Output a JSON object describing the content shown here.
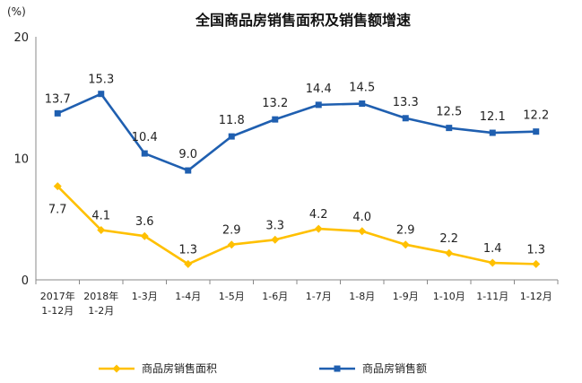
{
  "chart_data": {
    "type": "line",
    "title": "全国商品房销售面积及销售额增速",
    "unit": "(%)",
    "ylim": [
      0,
      20
    ],
    "yticks": [
      "0",
      "10",
      "20"
    ],
    "grid": false,
    "legend_position": "bottom",
    "categories": [
      [
        "2017年",
        "1-12月"
      ],
      [
        "2018年",
        "1-2月"
      ],
      [
        "1-3月"
      ],
      [
        "1-4月"
      ],
      [
        "1-5月"
      ],
      [
        "1-6月"
      ],
      [
        "1-7月"
      ],
      [
        "1-8月"
      ],
      [
        "1-9月"
      ],
      [
        "1-10月"
      ],
      [
        "1-11月"
      ],
      [
        "1-12月"
      ]
    ],
    "series": [
      {
        "name": "商品房销售面积",
        "color": "#FFC000",
        "marker": "diamond",
        "values": [
          7.7,
          4.1,
          3.6,
          1.3,
          2.9,
          3.3,
          4.2,
          4.0,
          2.9,
          2.2,
          1.4,
          1.3
        ],
        "labels": [
          "7.7",
          "4.1",
          "3.6",
          "1.3",
          "2.9",
          "3.3",
          "4.2",
          "4.0",
          "2.9",
          "2.2",
          "1.4",
          "1.3"
        ]
      },
      {
        "name": "商品房销售额",
        "color": "#1F5FB0",
        "marker": "square",
        "values": [
          13.7,
          15.3,
          10.4,
          9.0,
          11.8,
          13.2,
          14.4,
          14.5,
          13.3,
          12.5,
          12.1,
          12.2
        ],
        "labels": [
          "13.7",
          "15.3",
          "10.4",
          "9.0",
          "11.8",
          "13.2",
          "14.4",
          "14.5",
          "13.3",
          "12.5",
          "12.1",
          "12.2"
        ]
      }
    ]
  }
}
